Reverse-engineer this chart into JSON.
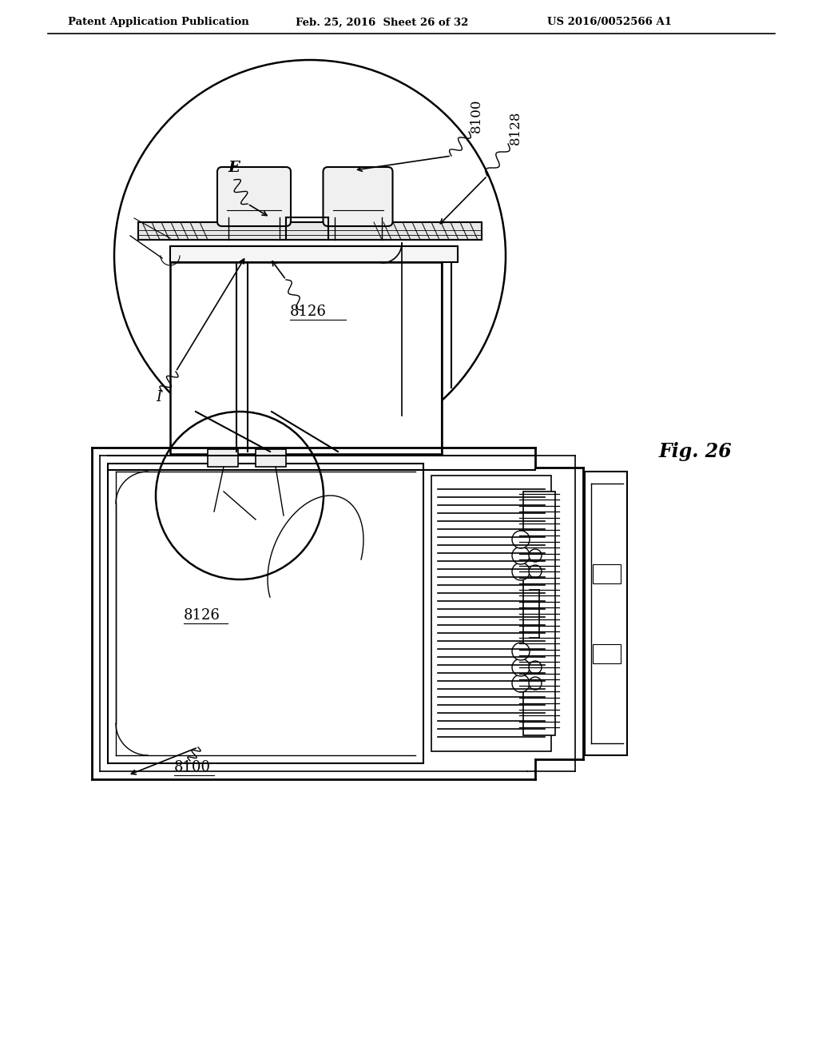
{
  "header_left": "Patent Application Publication",
  "header_mid": "Feb. 25, 2016  Sheet 26 of 32",
  "header_right": "US 2016/0052566 A1",
  "fig_label": "Fig. 26",
  "bg_color": "#ffffff",
  "line_color": "#000000",
  "gray_color": "#cccccc"
}
